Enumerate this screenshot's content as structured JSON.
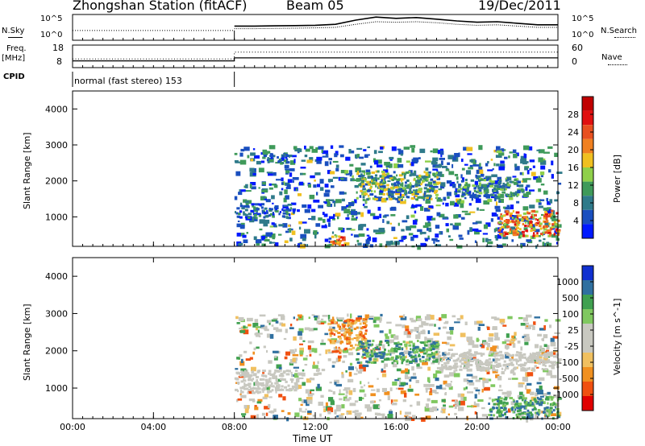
{
  "header": {
    "station": "Zhongshan Station (fitACF)",
    "beam": "Beam 05",
    "date": "19/Dec/2011"
  },
  "top_panels": {
    "nsky_label": "N.Sky",
    "nsky_ticks": [
      "10^5",
      "10^0"
    ],
    "nsearch_label": "N.Search",
    "nsearch_ticks": [
      "10^5",
      "10^0"
    ],
    "freq_label": "Freq.",
    "freq_unit": "[MHz]",
    "freq_ticks": [
      "18",
      "8"
    ],
    "nave_label": "Nave",
    "nave_ticks": [
      "60",
      "0"
    ],
    "cpid_label": "CPID",
    "cpid_text": "normal (fast stereo) 153"
  },
  "colors": {
    "power_scale": [
      "#0019ff",
      "#1a4fbf",
      "#2f7a8a",
      "#3f9a5a",
      "#8fd04a",
      "#f0c020",
      "#f08020",
      "#e85020",
      "#e01010",
      "#c00000"
    ],
    "velocity_scale": [
      "#e00000",
      "#f05010",
      "#f09020",
      "#f0c060",
      "#c8c8c0",
      "#c8c8c0",
      "#80c860",
      "#40a050",
      "#3070a0",
      "#1030d0"
    ],
    "ground_scatter": "#c8c8c0"
  },
  "chart_data": [
    {
      "type": "heatmap",
      "name": "power",
      "ylabel": "Slant Range [km]",
      "yticks": [
        "4000",
        "3000",
        "2000",
        "1000"
      ],
      "ylim": [
        180,
        4500
      ],
      "colorbar_label": "Power [dB]",
      "colorbar_ticks": [
        "28",
        "24",
        "20",
        "16",
        "12",
        "8",
        "4"
      ],
      "colorbar_range": [
        0,
        30
      ],
      "data_start_hour": 8,
      "features": [
        {
          "t": [
            8.0,
            9.6
          ],
          "r": [
            1000,
            1400
          ],
          "level": "8-12"
        },
        {
          "t": [
            9.6,
            11.0
          ],
          "r": [
            1000,
            1300
          ],
          "level": "8-12"
        },
        {
          "t": [
            9.3,
            10.7
          ],
          "r": [
            2500,
            2800
          ],
          "level": "8-12"
        },
        {
          "t": [
            12.6,
            13.5
          ],
          "r": [
            200,
            500
          ],
          "level": "20-30"
        },
        {
          "t": [
            14.0,
            18.0
          ],
          "r": [
            1500,
            2300
          ],
          "level": "12-20"
        },
        {
          "t": [
            19.0,
            22.0
          ],
          "r": [
            1600,
            2100
          ],
          "level": "12-16"
        },
        {
          "t": [
            21.0,
            24.0
          ],
          "r": [
            500,
            1200
          ],
          "level": "20-30"
        }
      ]
    },
    {
      "type": "heatmap",
      "name": "velocity",
      "ylabel": "Slant Range [km]",
      "yticks": [
        "4000",
        "3000",
        "2000",
        "1000"
      ],
      "ylim": [
        180,
        4500
      ],
      "colorbar_label": "Velocity [m s^-1]",
      "colorbar_ticks": [
        "1000",
        "500",
        "100",
        "25",
        "-25",
        "-100",
        "-500",
        "-1000"
      ],
      "colorbar_range": [
        -1000,
        1000
      ],
      "xlabel": "Time UT",
      "xticks": [
        "00:00",
        "04:00",
        "08:00",
        "12:00",
        "16:00",
        "20:00",
        "00:00"
      ],
      "xlim": [
        0,
        24
      ],
      "data_start_hour": 8,
      "features": [
        {
          "t": [
            8.0,
            11.0
          ],
          "r": [
            900,
            1500
          ],
          "level": "ground scatter"
        },
        {
          "t": [
            12.6,
            14.5
          ],
          "r": [
            2000,
            2900
          ],
          "level": "-100 to -500"
        },
        {
          "t": [
            14.0,
            18.0
          ],
          "r": [
            1700,
            2300
          ],
          "level": "100 to 500"
        },
        {
          "t": [
            18.0,
            24.0
          ],
          "r": [
            1500,
            2000
          ],
          "level": "ground scatter"
        },
        {
          "t": [
            20.5,
            24.0
          ],
          "r": [
            200,
            800
          ],
          "level": "100 to 500"
        }
      ]
    }
  ],
  "timeseries": {
    "x_hours": [
      8,
      9,
      10,
      11,
      12,
      13,
      14,
      15,
      16,
      17,
      18,
      19,
      20,
      21,
      22,
      23,
      24
    ],
    "nsky": [
      0.55,
      0.55,
      0.56,
      0.57,
      0.58,
      0.62,
      0.78,
      0.9,
      0.85,
      0.88,
      0.82,
      0.75,
      0.7,
      0.72,
      0.66,
      0.6,
      0.6
    ],
    "nsearch": [
      0.45,
      0.45,
      0.46,
      0.47,
      0.48,
      0.5,
      0.62,
      0.72,
      0.7,
      0.72,
      0.68,
      0.62,
      0.58,
      0.6,
      0.55,
      0.5,
      0.5
    ],
    "freq_mhz_before": 9,
    "freq_mhz_after": 12,
    "nave_before": 18,
    "nave_after": 26
  }
}
